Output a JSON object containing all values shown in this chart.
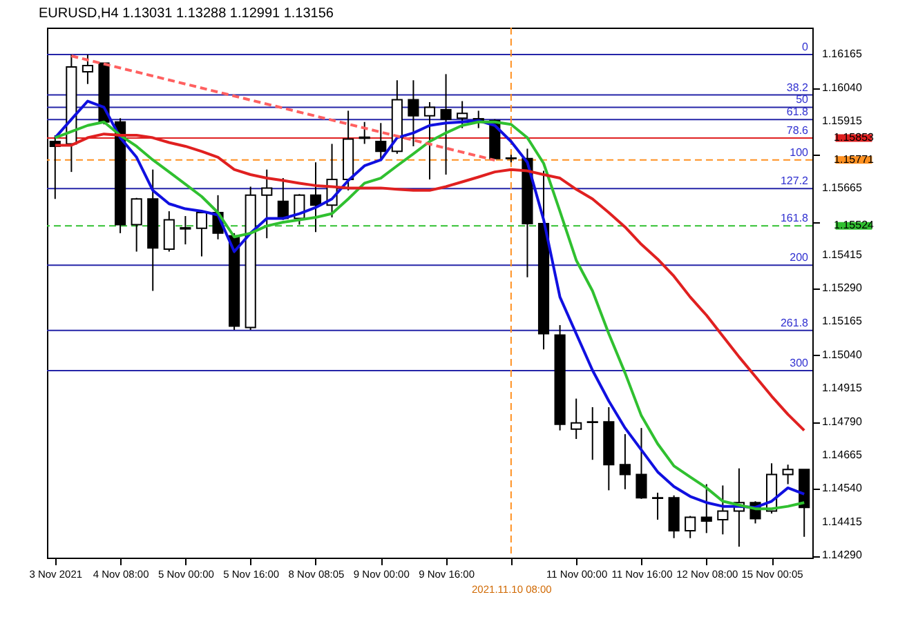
{
  "chart_data": {
    "type": "candlestick",
    "title": "EURUSD,H4 1.13031 1.13288 1.12991 1.13156",
    "categories": [
      "3 Nov 2021",
      null,
      null,
      null,
      "4 Nov 08:00",
      null,
      null,
      null,
      "5 Nov 00:00",
      null,
      null,
      null,
      "5 Nov 16:00",
      null,
      null,
      null,
      "8 Nov 08:05",
      null,
      null,
      null,
      "9 Nov 00:00",
      null,
      null,
      null,
      "9 Nov 16:00",
      null,
      null,
      null,
      "2021.11.10 08:00",
      null,
      null,
      null,
      "11 Nov 00:00",
      null,
      null,
      null,
      "11 Nov 16:00",
      null,
      null,
      null,
      "12 Nov 08:00",
      null,
      null,
      null,
      "15 Nov 00:05",
      null,
      null
    ],
    "ohlc": [
      [
        1.1584,
        1.15863,
        1.15625,
        1.15822
      ],
      [
        1.15831,
        1.16165,
        1.15726,
        1.16119
      ],
      [
        1.16101,
        1.16165,
        1.16055,
        1.16124
      ],
      [
        1.16133,
        1.16133,
        1.15904,
        1.15913
      ],
      [
        1.15913,
        1.15927,
        1.15497,
        1.15529
      ],
      [
        1.15529,
        1.15629,
        1.15428,
        1.15625
      ],
      [
        1.15625,
        1.15735,
        1.15281,
        1.15442
      ],
      [
        1.15437,
        1.15579,
        1.15428,
        1.15547
      ],
      [
        1.15513,
        1.15561,
        1.15455,
        1.15517
      ],
      [
        1.15515,
        1.15584,
        1.1541,
        1.15574
      ],
      [
        1.15574,
        1.15639,
        1.15474,
        1.15497
      ],
      [
        1.15487,
        1.15497,
        1.15135,
        1.15149
      ],
      [
        1.15144,
        1.15671,
        1.15135,
        1.15639
      ],
      [
        1.15639,
        1.15735,
        1.15478,
        1.15666
      ],
      [
        1.15616,
        1.15703,
        1.15547,
        1.15552
      ],
      [
        1.15552,
        1.15643,
        1.15529,
        1.15639
      ],
      [
        1.15639,
        1.15762,
        1.15501,
        1.15602
      ],
      [
        1.15602,
        1.15831,
        1.15556,
        1.15698
      ],
      [
        1.15698,
        1.15955,
        1.15657,
        1.15849
      ],
      [
        1.15852,
        1.15913,
        1.15831,
        1.15856
      ],
      [
        1.1584,
        1.15909,
        1.15771,
        1.15803
      ],
      [
        1.15803,
        1.16069,
        1.15794,
        1.15996
      ],
      [
        1.15996,
        1.16069,
        1.15822,
        1.15936
      ],
      [
        1.15936,
        1.15987,
        1.15698,
        1.15968
      ],
      [
        1.15959,
        1.16092,
        1.15716,
        1.15923
      ],
      [
        1.15927,
        1.15991,
        1.1589,
        1.15945
      ],
      [
        1.1592,
        1.15955,
        1.1589,
        1.15925
      ],
      [
        1.15918,
        1.15923,
        1.15776,
        1.15776
      ],
      [
        1.15776,
        1.1579,
        1.15762,
        1.15778
      ],
      [
        1.15776,
        1.15813,
        1.15332,
        1.15533
      ],
      [
        1.15533,
        1.1573,
        1.15062,
        1.15121
      ],
      [
        1.15116,
        1.15153,
        1.14759,
        1.14782
      ],
      [
        1.14764,
        1.14878,
        1.14727,
        1.14787
      ],
      [
        1.14789,
        1.14846,
        1.14649,
        1.14791
      ],
      [
        1.14791,
        1.14846,
        1.14535,
        1.14631
      ],
      [
        1.14631,
        1.14745,
        1.14539,
        1.14594
      ],
      [
        1.14594,
        1.14768,
        1.14503,
        1.14507
      ],
      [
        1.14507,
        1.14526,
        1.14425,
        1.14505
      ],
      [
        1.14507,
        1.14516,
        1.14356,
        1.14384
      ],
      [
        1.14384,
        1.14439,
        1.14356,
        1.14434
      ],
      [
        1.14434,
        1.14558,
        1.14375,
        1.1442
      ],
      [
        1.14425,
        1.14553,
        1.1437,
        1.14457
      ],
      [
        1.14457,
        1.14617,
        1.14324,
        1.14489
      ],
      [
        1.14489,
        1.14494,
        1.14411,
        1.14429
      ],
      [
        1.14457,
        1.14636,
        1.14448,
        1.14594
      ],
      [
        1.14594,
        1.14631,
        1.14558,
        1.14613
      ],
      [
        1.14613,
        1.14613,
        1.14361,
        1.14471
      ]
    ],
    "series": [
      {
        "type": "line",
        "color": "#1010e0",
        "values": [
          1.15854,
          1.15923,
          1.15991,
          1.15968,
          1.15854,
          1.15781,
          1.15657,
          1.15607,
          1.15588,
          1.15579,
          1.15565,
          1.15428,
          1.15497,
          1.15552,
          1.15552,
          1.1557,
          1.15593,
          1.15625,
          1.15694,
          1.15749,
          1.15771,
          1.15854,
          1.15872,
          1.159,
          1.15909,
          1.15913,
          1.15918,
          1.159,
          1.1584,
          1.15762,
          1.15547,
          1.15258,
          1.15121,
          1.14984,
          1.14869,
          1.14768,
          1.14686,
          1.14604,
          1.14549,
          1.14512,
          1.14489,
          1.14475,
          1.14475,
          1.14471,
          1.14494,
          1.14544,
          1.14521
        ]
      },
      {
        "type": "line",
        "color": "#30c030",
        "values": [
          1.15854,
          1.15877,
          1.159,
          1.15913,
          1.15863,
          1.15822,
          1.15771,
          1.15726,
          1.1568,
          1.15634,
          1.15574,
          1.15483,
          1.15497,
          1.15524,
          1.15538,
          1.15547,
          1.15556,
          1.1557,
          1.15625,
          1.15684,
          1.15703,
          1.15749,
          1.15794,
          1.1584,
          1.15872,
          1.159,
          1.15913,
          1.15913,
          1.15904,
          1.15854,
          1.15758,
          1.15579,
          1.15396,
          1.15281,
          1.15121,
          1.14974,
          1.14814,
          1.14709,
          1.14626,
          1.14585,
          1.14544,
          1.14494,
          1.1448,
          1.14466,
          1.14466,
          1.14475,
          1.14489
        ]
      },
      {
        "type": "line",
        "color": "#e02020",
        "values": [
          1.15826,
          1.15826,
          1.15854,
          1.15868,
          1.15863,
          1.15863,
          1.15854,
          1.15836,
          1.15822,
          1.15803,
          1.15781,
          1.15735,
          1.15716,
          1.15703,
          1.15694,
          1.15684,
          1.15675,
          1.15671,
          1.15666,
          1.15666,
          1.15666,
          1.15661,
          1.15657,
          1.15657,
          1.15671,
          1.15689,
          1.15707,
          1.15726,
          1.15735,
          1.1573,
          1.15716,
          1.15703,
          1.15661,
          1.15625,
          1.15574,
          1.1552,
          1.15455,
          1.154,
          1.15336,
          1.15258,
          1.1519,
          1.15112,
          1.15034,
          1.14961,
          1.14887,
          1.14819,
          1.14759
        ]
      },
      {
        "type": "line",
        "color": "#ff6060",
        "line_style": "dashed",
        "values": [
          null,
          1.1616,
          null,
          null,
          null,
          null,
          null,
          null,
          null,
          null,
          null,
          null,
          null,
          null,
          null,
          null,
          null,
          null,
          null,
          null,
          null,
          null,
          null,
          null,
          null,
          null,
          null,
          1.1577,
          null,
          null,
          null,
          null,
          null,
          null,
          null,
          null,
          null,
          null,
          null,
          null,
          null,
          null,
          null,
          null,
          null,
          null,
          null
        ]
      }
    ],
    "ylim": [
      1.14283,
      1.16266
    ],
    "yticks": [
      1.16165,
      {
        "value": 1.1604,
        "label": "1.16040"
      },
      1.15915,
      {
        "value": 1.1579,
        "label": null
      },
      1.15665,
      {
        "value": 1.1554,
        "label": null
      },
      1.15415,
      {
        "value": 1.1529,
        "label": "1.15290"
      },
      1.15165,
      {
        "value": 1.1504,
        "label": "1.15040"
      },
      1.14915,
      {
        "value": 1.1479,
        "label": "1.14790"
      },
      1.14665,
      {
        "value": 1.1454,
        "label": "1.14540"
      },
      1.14415,
      {
        "value": 1.1429,
        "label": "1.14290"
      }
    ],
    "ref_lines": [
      {
        "axis": "y",
        "value": 1.16165,
        "color": "#2424a8"
      },
      {
        "axis": "y",
        "value": 1.16014,
        "color": "#2424a8"
      },
      {
        "axis": "y",
        "value": 1.15968,
        "color": "#2424a8"
      },
      {
        "axis": "y",
        "value": 1.15922,
        "color": "#2424a8"
      },
      {
        "axis": "y",
        "value": 1.15853,
        "label": "1.15853",
        "color": "#e02020"
      },
      {
        "axis": "y",
        "value": 1.15771,
        "label": "1.15771",
        "color": "#ff9020",
        "line_style": "dashed"
      },
      {
        "axis": "y",
        "value": 1.15664,
        "color": "#2424a8"
      },
      {
        "axis": "y",
        "value": 1.15524,
        "label": "1.15524",
        "color": "#30c030",
        "line_style": "dashed"
      },
      {
        "axis": "y",
        "value": 1.15377,
        "color": "#2424a8"
      },
      {
        "axis": "y",
        "value": 1.15133,
        "color": "#2424a8"
      },
      {
        "axis": "y",
        "value": 1.14983,
        "color": "#2424a8"
      },
      {
        "axis": "x",
        "value": "2021.11.10 08:00",
        "color": "#ff9020",
        "line_style": "dashed"
      }
    ],
    "annotations": [
      {
        "text": "0",
        "y": 1.16165
      },
      {
        "text": "38.2",
        "y": 1.16014
      },
      {
        "text": "50",
        "y": 1.15968
      },
      {
        "text": "61.8",
        "y": 1.15922
      },
      {
        "text": "78.6",
        "y": 1.15853
      },
      {
        "text": "100",
        "y": 1.15771
      },
      {
        "text": "127.2",
        "y": 1.15664
      },
      {
        "text": "161.8",
        "y": 1.15524
      },
      {
        "text": "200",
        "y": 1.15377
      },
      {
        "text": "261.8",
        "y": 1.15133
      },
      {
        "text": "300",
        "y": 1.14983
      }
    ],
    "grid": false
  }
}
